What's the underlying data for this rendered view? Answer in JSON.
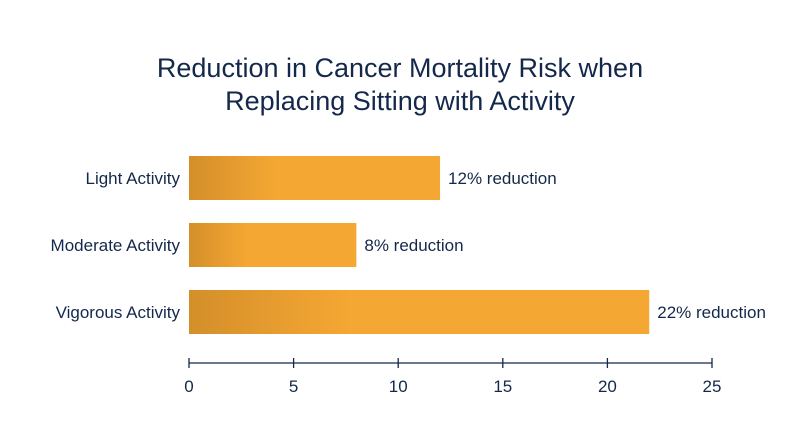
{
  "chart_data": {
    "type": "bar",
    "orientation": "horizontal",
    "title_lines": [
      "Reduction in Cancer Mortality Risk when",
      "Replacing Sitting with Activity"
    ],
    "categories": [
      "Light Activity",
      "Moderate Activity",
      "Vigorous Activity"
    ],
    "values": [
      12,
      8,
      22
    ],
    "data_labels": [
      "12% reduction",
      "8% reduction",
      "22% reduction"
    ],
    "x_ticks": [
      "0",
      "5",
      "10",
      "15",
      "20",
      "25"
    ],
    "xlim": [
      0,
      25
    ],
    "grid": false,
    "legend": "none",
    "colors": {
      "bar_start": "#d48f2a",
      "bar_end": "#f5a733",
      "text": "#14284b",
      "axis": "#14284b"
    }
  }
}
